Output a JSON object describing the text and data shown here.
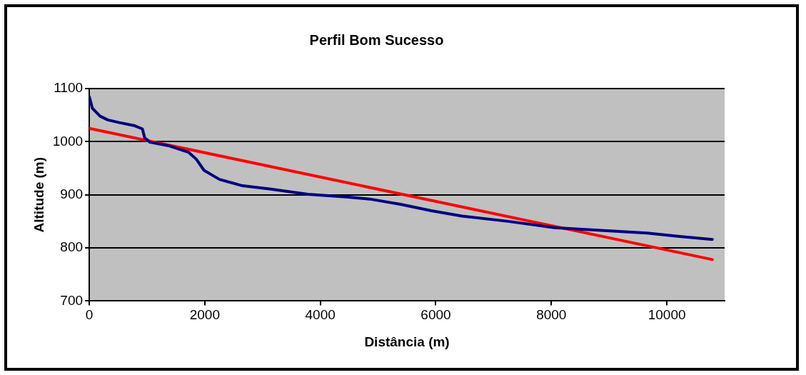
{
  "chart_data": {
    "type": "line",
    "title": "Perfil Bom Sucesso",
    "xlabel": "Distância (m)",
    "ylabel": "Altitude (m)",
    "xlim": [
      0,
      11000
    ],
    "xticks": [
      0,
      2000,
      4000,
      6000,
      8000,
      10000
    ],
    "ylim": [
      700,
      1100
    ],
    "yticks": [
      700,
      800,
      900,
      1000,
      1100
    ],
    "grid": "y",
    "legend": false,
    "marker": "none",
    "line_style": "solid",
    "series": [
      {
        "color": "#000080",
        "x": [
          0,
          53,
          187,
          320,
          520,
          787,
          920,
          960,
          1053,
          1387,
          1720,
          1853,
          1987,
          2253,
          2653,
          3120,
          3787,
          4453,
          4853,
          5387,
          5920,
          6453,
          7253,
          8053,
          8853,
          9653,
          10187,
          10787
        ],
        "values": [
          1085,
          1063,
          1048,
          1041,
          1036,
          1030,
          1024,
          1007,
          999,
          992,
          980,
          967,
          946,
          929,
          917,
          911,
          901,
          896,
          892,
          882,
          870,
          860,
          850,
          838,
          833,
          828,
          822,
          816
        ]
      },
      {
        "color": "#ff0000",
        "x": [
          0,
          10787
        ],
        "values": [
          1025,
          778
        ]
      }
    ]
  }
}
